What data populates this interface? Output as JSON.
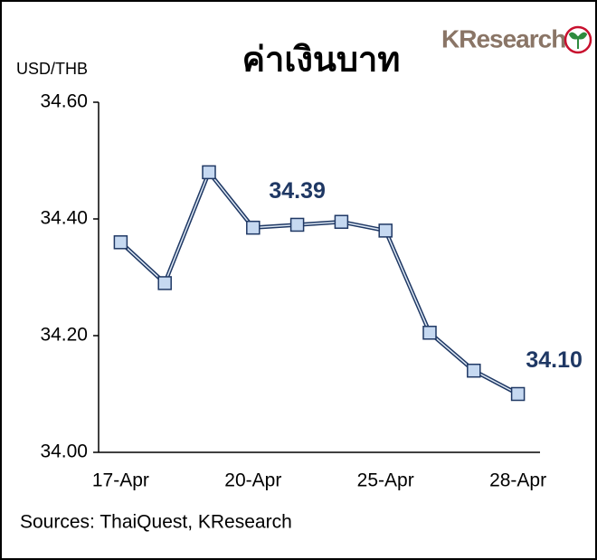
{
  "chart_data": {
    "type": "line",
    "title": "ค่าเงินบาท",
    "y_label": "USD/THB",
    "source": "Sources: ThaiQuest, KResearch",
    "logo": "KResearch",
    "categories": [
      "17-Apr",
      null,
      null,
      "20-Apr",
      null,
      null,
      "25-Apr",
      null,
      null,
      "28-Apr"
    ],
    "values": [
      34.36,
      34.29,
      34.48,
      34.385,
      34.39,
      34.395,
      34.38,
      34.205,
      34.14,
      34.1
    ],
    "value_labels": [
      null,
      null,
      null,
      null,
      "34.39",
      null,
      null,
      null,
      null,
      "34.10"
    ],
    "color": "#1f3864",
    "marker_color": "#c6d9f1",
    "ylim": [
      34.0,
      34.6
    ],
    "yticks": [
      {
        "value": 34.0,
        "label": "34.00"
      },
      {
        "value": 34.2,
        "label": "34.20"
      },
      {
        "value": 34.4,
        "label": "34.40"
      },
      {
        "value": 34.6,
        "label": "34.60"
      }
    ]
  }
}
